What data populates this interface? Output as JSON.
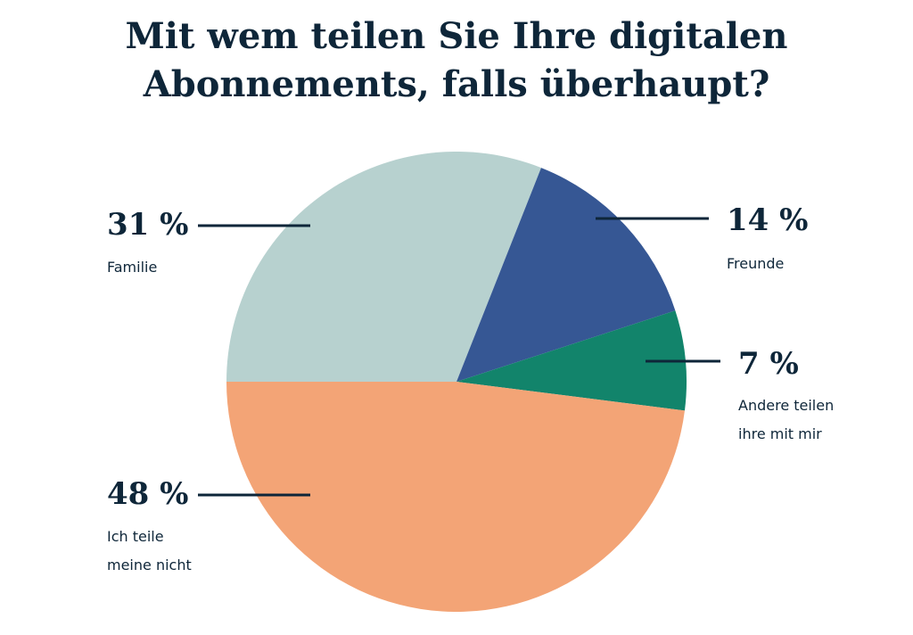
{
  "chart_data": {
    "type": "pie",
    "title": [
      "Mit wem teilen Sie Ihre digitalen",
      "Abonnements, falls überhaupt?"
    ],
    "start": "left, clockwise",
    "slices": [
      {
        "label": [
          "Familie"
        ],
        "value": 31,
        "value_label": "31 %",
        "color": "#b7d1cf"
      },
      {
        "label": [
          "Freunde"
        ],
        "value": 14,
        "value_label": "14 %",
        "color": "#365794"
      },
      {
        "label": [
          "Andere teilen",
          "ihre mit mir"
        ],
        "value": 7,
        "value_label": "7 %",
        "color": "#12846b"
      },
      {
        "label": [
          "Ich teile",
          "meine nicht"
        ],
        "value": 48,
        "value_label": "48 %",
        "color": "#f3a476"
      }
    ],
    "text_color": "#0e2639"
  }
}
